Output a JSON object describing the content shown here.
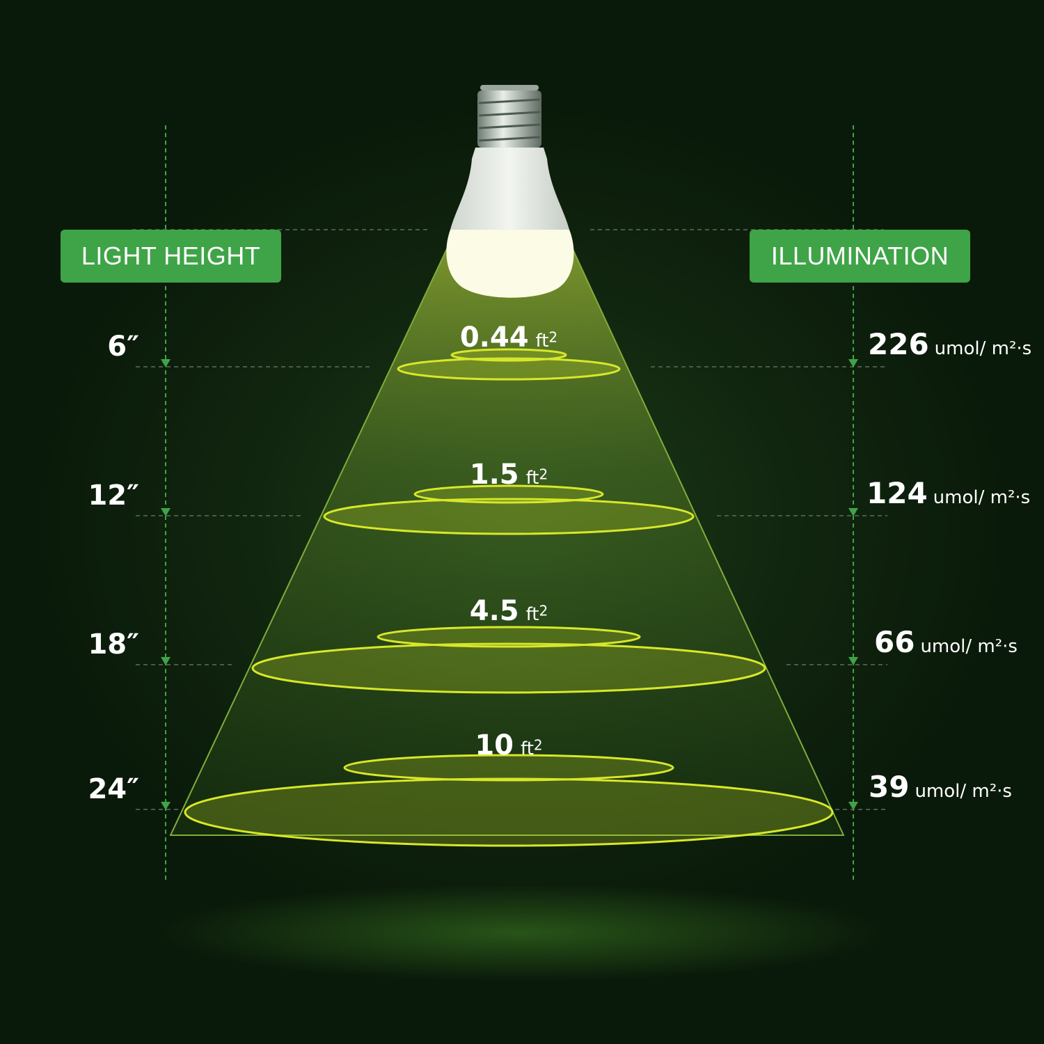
{
  "labels": {
    "light_height": "LIGHT HEIGHT",
    "illumination": "ILLUMINATION"
  },
  "area_unit": "ft",
  "area_exp": "2",
  "illum_unit": "umol/ m²·s",
  "rows": [
    {
      "height": "6″",
      "area": "0.44",
      "illumination": "226"
    },
    {
      "height": "12″",
      "area": "1.5",
      "illumination": "124"
    },
    {
      "height": "18″",
      "area": "4.5",
      "illumination": "66"
    },
    {
      "height": "24″",
      "area": "10",
      "illumination": "39"
    }
  ],
  "colors": {
    "badge": "#3fa447",
    "ring": "#d8e82a",
    "guide": "#3fa447"
  }
}
